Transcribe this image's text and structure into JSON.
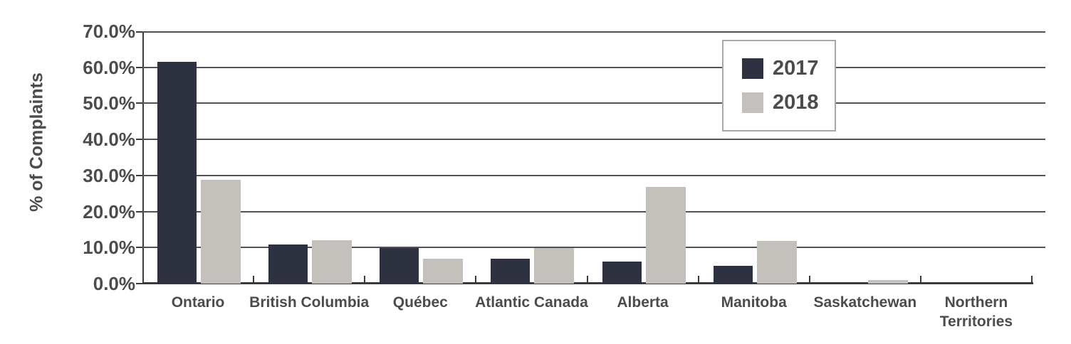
{
  "chart_data": {
    "type": "bar",
    "title": "",
    "xlabel": "",
    "ylabel": "% of Complaints",
    "categories": [
      "Ontario",
      "British Columbia",
      "Québec",
      "Atlantic Canada",
      "Alberta",
      "Manitoba",
      "Saskatchewan",
      "Northern Territories"
    ],
    "xtick_display": [
      "Ontario",
      "British Columbia",
      "Québec",
      "Atlantic Canada",
      "Alberta",
      "Manitoba",
      "Saskatchewan",
      "Northern\nTerritories"
    ],
    "series": [
      {
        "name": "2017",
        "color": "#2e3140",
        "values": [
          61.5,
          10.9,
          9.9,
          7.0,
          6.1,
          5.0,
          0.0,
          0.0
        ]
      },
      {
        "name": "2018",
        "color": "#c4c1bd",
        "values": [
          28.8,
          12.0,
          6.9,
          9.9,
          26.9,
          11.9,
          1.0,
          0.0
        ]
      }
    ],
    "ylim": [
      0,
      70
    ],
    "ytick_step": 10,
    "ytick_labels": [
      "0.0%",
      "10.0%",
      "20.0%",
      "30.0%",
      "40.0%",
      "50.0%",
      "60.0%",
      "70.0%"
    ],
    "grid": true,
    "legend_position": "top-right"
  },
  "colors": {
    "background": "#ffffff",
    "gridline": "#515255",
    "axis_line": "#3a3b3e",
    "text": "#4c4c4e",
    "legend_border": "#a8a8a8",
    "series_2017": "#2e3140",
    "series_2018": "#c4c1bd"
  }
}
